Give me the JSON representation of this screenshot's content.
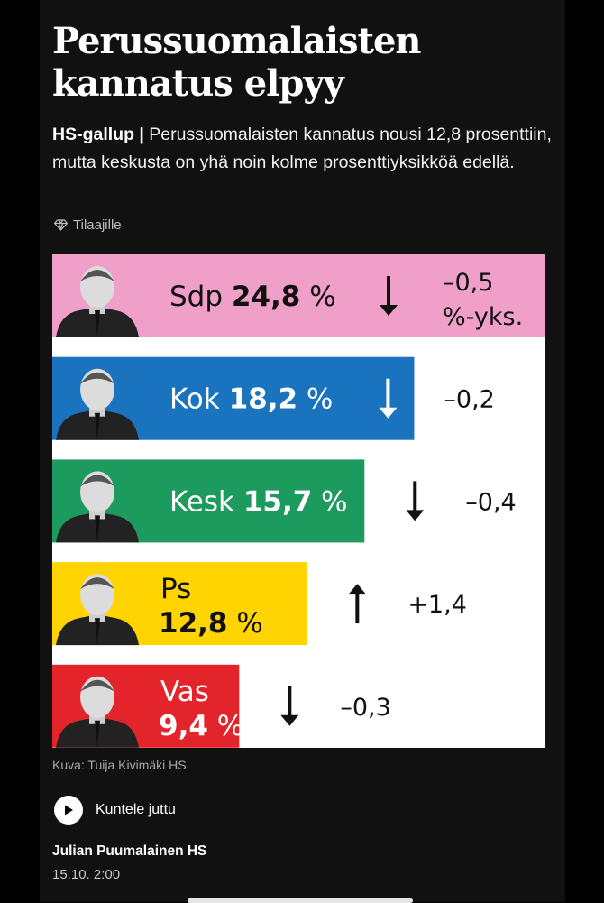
{
  "article": {
    "title": "Perussuomalaisten kannatus elpyy",
    "kicker": "HS-gallup |",
    "lead": "Perussuomalaisten kannatus nousi 12,8 prosenttiin, mutta keskusta on yhä noin kolme prosenttiyksikköä edellä.",
    "tag_icon": "diamond-icon",
    "tag": "Tilaajille",
    "image_credit": "Kuva: Tuija Kivimäki HS",
    "listen_label": "Kuntele juttu",
    "author": "Julian Puumalainen HS",
    "date": "15.10. 2:00"
  },
  "chart_data": {
    "type": "bar",
    "orientation": "horizontal",
    "categories": [
      "Sdp",
      "Kok",
      "Kesk",
      "Ps",
      "Vas"
    ],
    "values": [
      24.8,
      18.2,
      15.7,
      12.8,
      9.4
    ],
    "value_labels": [
      "24,8 %",
      "18,2 %",
      "15,7 %",
      "12,8 %",
      "9,4 %"
    ],
    "changes": [
      -0.5,
      -0.2,
      -0.4,
      1.4,
      -0.3
    ],
    "change_labels": [
      "–0,5 %-yks.",
      "–0,2",
      "–0,4",
      "+1,4",
      "–0,3"
    ],
    "change_icons": [
      "arrow-down-icon",
      "arrow-down-icon",
      "arrow-down-icon",
      "arrow-up-icon",
      "arrow-down-icon"
    ],
    "colors": [
      "#f0a0c8",
      "#1a73be",
      "#1d9b5e",
      "#ffd400",
      "#e3252b"
    ],
    "text_colors": [
      "#111111",
      "#ffffff",
      "#ffffff",
      "#111111",
      "#ffffff"
    ],
    "xlim": [
      0,
      24.8
    ],
    "grid": false,
    "legend": "none"
  }
}
